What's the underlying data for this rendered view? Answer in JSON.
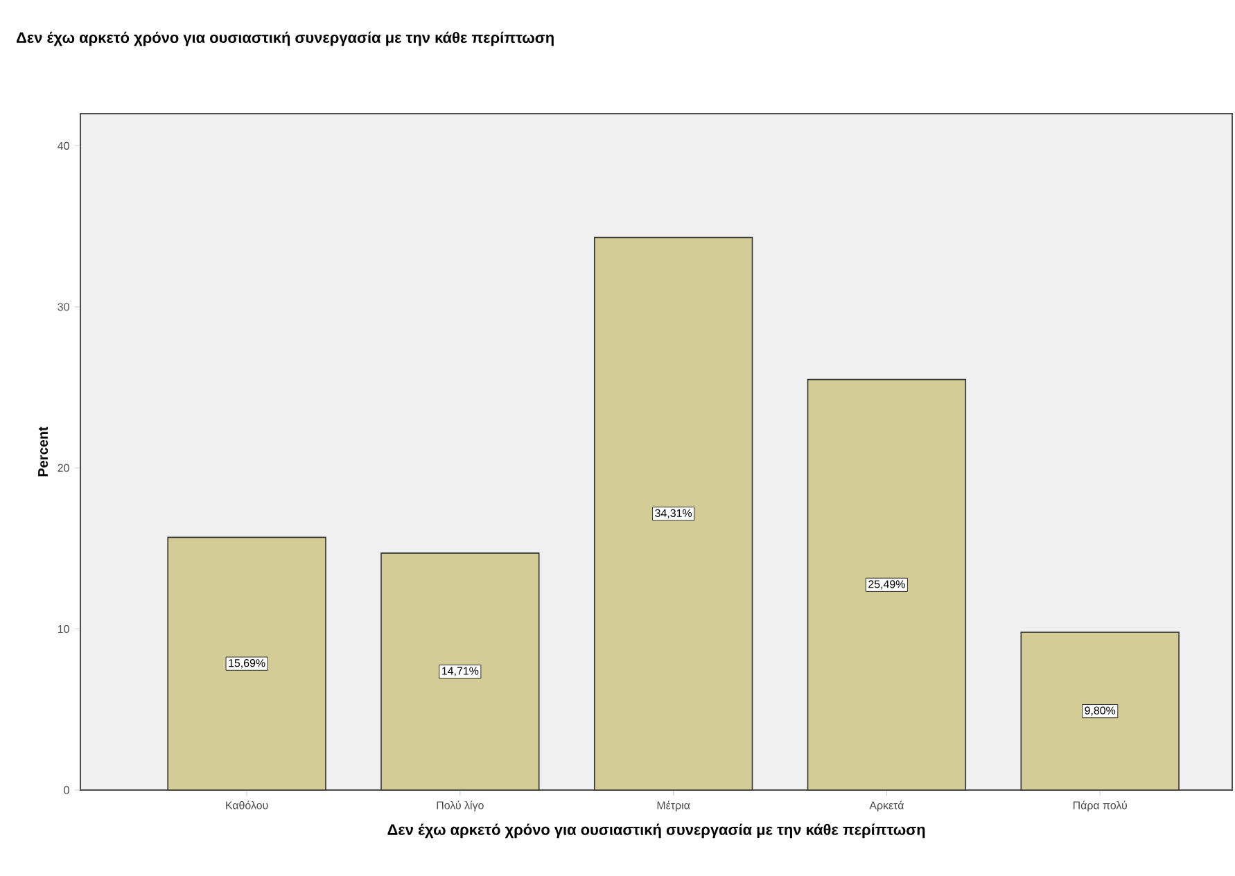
{
  "chart_data": {
    "type": "bar",
    "title": "Δεν έχω αρκετό χρόνο για ουσιαστική συνεργασία με την κάθε περίπτωση",
    "xlabel": "Δεν έχω αρκετό χρόνο για ουσιαστική συνεργασία με την κάθε περίπτωση",
    "ylabel": "Percent",
    "categories": [
      "Καθόλου",
      "Πολύ λίγο",
      "Μέτρια",
      "Αρκετά",
      "Πάρα πολύ"
    ],
    "values": [
      15.69,
      14.71,
      34.31,
      25.49,
      9.8
    ],
    "value_labels": [
      "15,69%",
      "14,71%",
      "34,31%",
      "25,49%",
      "9,80%"
    ],
    "color": "#d3cc96",
    "ylim": [
      0,
      42
    ],
    "yticks": [
      0,
      10,
      20,
      30,
      40
    ]
  }
}
